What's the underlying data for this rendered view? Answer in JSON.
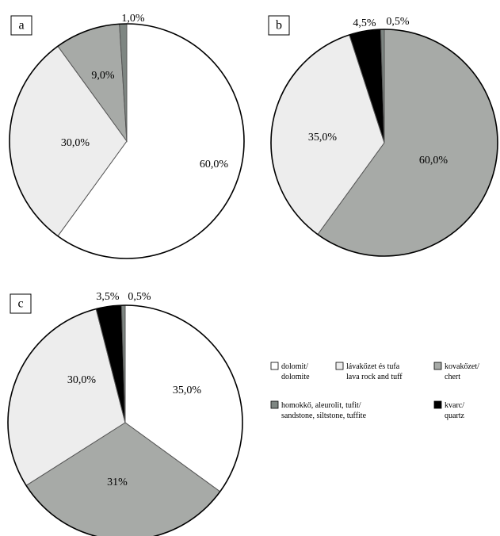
{
  "colors": {
    "dolomite": "#ffffff",
    "lava_tuff": "#ededed",
    "chert": "#a7aaa7",
    "sandstone": "#7e8682",
    "quartz": "#000000",
    "outline": "#000000"
  },
  "legend": {
    "items": [
      {
        "key": "dolomite",
        "line1": "dolomit/",
        "line2": "dolomite"
      },
      {
        "key": "lava_tuff",
        "line1": "lávakőzet és tufa",
        "line2": "lava rock and tuff"
      },
      {
        "key": "chert",
        "line1": "kovakőzet/",
        "line2": "chert"
      },
      {
        "key": "sandstone",
        "line1": "homokkő, aleurolit, tufit/",
        "line2": "sandstone, siltstone, tuffite"
      },
      {
        "key": "quartz",
        "line1": "kvarc/",
        "line2": "quartz"
      }
    ]
  },
  "chart_data": [
    {
      "type": "pie",
      "panel_label": "a",
      "slices": [
        {
          "key": "dolomite",
          "value": 60.0,
          "label": "60,0%"
        },
        {
          "key": "lava_tuff",
          "value": 30.0,
          "label": "30,0%"
        },
        {
          "key": "chert",
          "value": 9.0,
          "label": "9,0%"
        },
        {
          "key": "sandstone",
          "value": 1.0,
          "label": "1,0%"
        }
      ]
    },
    {
      "type": "pie",
      "panel_label": "b",
      "slices": [
        {
          "key": "chert",
          "value": 60.0,
          "label": "60,0%"
        },
        {
          "key": "lava_tuff",
          "value": 35.0,
          "label": "35,0%"
        },
        {
          "key": "quartz",
          "value": 4.5,
          "label": "4,5%"
        },
        {
          "key": "sandstone",
          "value": 0.5,
          "label": "0,5%"
        }
      ]
    },
    {
      "type": "pie",
      "panel_label": "c",
      "slices": [
        {
          "key": "dolomite",
          "value": 35.0,
          "label": "35,0%"
        },
        {
          "key": "chert",
          "value": 31.0,
          "label": "31%"
        },
        {
          "key": "lava_tuff",
          "value": 30.0,
          "label": "30,0%"
        },
        {
          "key": "quartz",
          "value": 3.5,
          "label": "3,5%"
        },
        {
          "key": "sandstone",
          "value": 0.5,
          "label": "0,5%"
        }
      ]
    }
  ]
}
